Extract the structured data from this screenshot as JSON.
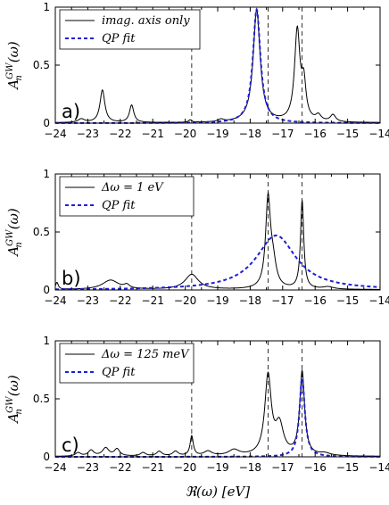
{
  "chart_data": [
    {
      "type": "line",
      "panel_label": "a)",
      "xlim": [
        -24,
        -14
      ],
      "ylim": [
        0,
        1
      ],
      "x_ticks": [
        "−24",
        "−23",
        "−22",
        "−21",
        "−20",
        "−19",
        "−18",
        "−17",
        "−16",
        "−15",
        "−14"
      ],
      "y_ticks": [
        "0",
        "0.5",
        "1"
      ],
      "ylabel": "A_n^{GW}(ω)",
      "vlines": [
        -19.8,
        -17.45,
        -16.4
      ],
      "legend": {
        "placement": "top-left",
        "entries": [
          "imag. axis only",
          "QP fit"
        ]
      },
      "series": [
        {
          "name": "imag. axis only",
          "style": "solid",
          "color": "#000000",
          "baseline": 0.003,
          "peaks": [
            {
              "x": -23.2,
              "height": 0.03,
              "width": 0.12
            },
            {
              "x": -22.55,
              "height": 0.28,
              "width": 0.09
            },
            {
              "x": -21.65,
              "height": 0.15,
              "width": 0.08
            },
            {
              "x": -19.85,
              "height": 0.02,
              "width": 0.06
            },
            {
              "x": -18.9,
              "height": 0.02,
              "width": 0.1
            },
            {
              "x": -17.8,
              "height": 0.97,
              "width": 0.13
            },
            {
              "x": -16.55,
              "height": 0.78,
              "width": 0.1
            },
            {
              "x": -16.35,
              "height": 0.3,
              "width": 0.08
            },
            {
              "x": -15.9,
              "height": 0.05,
              "width": 0.1
            },
            {
              "x": -15.45,
              "height": 0.06,
              "width": 0.1
            }
          ]
        },
        {
          "name": "QP fit",
          "style": "dashed",
          "color": "#1f1fd6",
          "baseline": 0,
          "peaks": [
            {
              "x": -17.8,
              "height": 0.98,
              "width": 0.14
            }
          ]
        }
      ]
    },
    {
      "type": "line",
      "panel_label": "b)",
      "xlim": [
        -24,
        -14
      ],
      "ylim": [
        0,
        1
      ],
      "x_ticks": [
        "−24",
        "−23",
        "−22",
        "−21",
        "−20",
        "−19",
        "−18",
        "−17",
        "−16",
        "−15",
        "−14"
      ],
      "y_ticks": [
        "0",
        "0.5",
        "1"
      ],
      "ylabel": "A_n^{GW}(ω)",
      "vlines": [
        -19.8,
        -17.45,
        -16.4
      ],
      "legend": {
        "placement": "top-left",
        "entries": [
          "Δω = 1 eV",
          "QP fit"
        ]
      },
      "series": [
        {
          "name": "Δω = 1 eV",
          "style": "solid",
          "color": "#000000",
          "baseline": 0.003,
          "peaks": [
            {
              "x": -23.95,
              "height": 0.06,
              "width": 0.05
            },
            {
              "x": -22.3,
              "height": 0.08,
              "width": 0.3
            },
            {
              "x": -21.8,
              "height": 0.03,
              "width": 0.1
            },
            {
              "x": -19.8,
              "height": 0.13,
              "width": 0.25
            },
            {
              "x": -17.45,
              "height": 0.75,
              "width": 0.09
            },
            {
              "x": -17.3,
              "height": 0.2,
              "width": 0.12
            },
            {
              "x": -16.4,
              "height": 0.76,
              "width": 0.06
            },
            {
              "x": -15.6,
              "height": 0.02,
              "width": 0.2
            }
          ]
        },
        {
          "name": "QP fit",
          "style": "dashed",
          "color": "#1f1fd6",
          "baseline": 0,
          "peaks": [
            {
              "x": -17.2,
              "height": 0.47,
              "width": 0.75
            }
          ]
        }
      ]
    },
    {
      "type": "line",
      "panel_label": "c)",
      "xlim": [
        -24,
        -14
      ],
      "ylim": [
        0,
        1
      ],
      "x_ticks": [
        "−24",
        "−23",
        "−22",
        "−21",
        "−20",
        "−19",
        "−18",
        "−17",
        "−16",
        "−15",
        "−14"
      ],
      "y_ticks": [
        "0",
        "0.5",
        "1"
      ],
      "ylabel": "A_n^{GW}(ω)",
      "xlabel": "ℜ(ω)  [eV]",
      "vlines": [
        -19.8,
        -17.45,
        -16.4
      ],
      "legend": {
        "placement": "top-left",
        "entries": [
          "Δω = 125 meV",
          "QP fit"
        ]
      },
      "series": [
        {
          "name": "Δω = 125 meV",
          "style": "solid",
          "color": "#000000",
          "baseline": 0.003,
          "peaks": [
            {
              "x": -23.3,
              "height": 0.03,
              "width": 0.1
            },
            {
              "x": -22.9,
              "height": 0.05,
              "width": 0.1
            },
            {
              "x": -22.45,
              "height": 0.07,
              "width": 0.12
            },
            {
              "x": -22.1,
              "height": 0.06,
              "width": 0.1
            },
            {
              "x": -21.3,
              "height": 0.03,
              "width": 0.1
            },
            {
              "x": -20.8,
              "height": 0.04,
              "width": 0.1
            },
            {
              "x": -20.3,
              "height": 0.04,
              "width": 0.1
            },
            {
              "x": -19.8,
              "height": 0.17,
              "width": 0.06
            },
            {
              "x": -19.3,
              "height": 0.04,
              "width": 0.15
            },
            {
              "x": -18.5,
              "height": 0.05,
              "width": 0.2
            },
            {
              "x": -17.45,
              "height": 0.68,
              "width": 0.12
            },
            {
              "x": -17.1,
              "height": 0.25,
              "width": 0.15
            },
            {
              "x": -16.4,
              "height": 0.72,
              "width": 0.09
            },
            {
              "x": -15.7,
              "height": 0.02,
              "width": 0.2
            }
          ]
        },
        {
          "name": "QP fit",
          "style": "dashed",
          "color": "#1f1fd6",
          "baseline": 0,
          "peaks": [
            {
              "x": -16.4,
              "height": 0.68,
              "width": 0.1
            }
          ]
        }
      ]
    }
  ]
}
